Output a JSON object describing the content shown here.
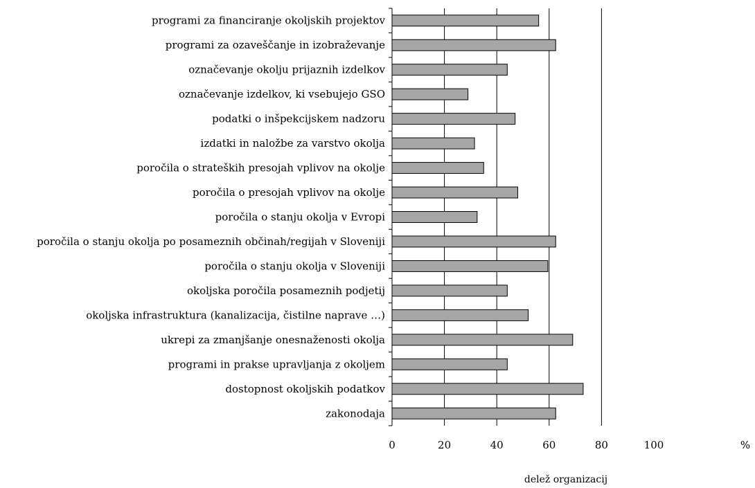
{
  "chart_data": {
    "type": "bar",
    "orientation": "horizontal",
    "categories": [
      "programi za financiranje okoljskih projektov",
      "programi za ozaveščanje in izobraževanje",
      "označevanje okolju prijaznih izdelkov",
      "označevanje izdelkov, ki vsebujejo GSO",
      "podatki o inšpekcijskem nadzoru",
      "izdatki in naložbe za varstvo okolja",
      "poročila o strateških presojah vplivov na okolje",
      "poročila o presojah vplivov na okolje",
      "poročila o stanju okolja v Evropi",
      "poročila o stanju okolja po posameznih občinah/regijah v Sloveniji",
      "poročila o stanju okolja v Sloveniji",
      "okoljska poročila posameznih podjetij",
      "okoljska infrastruktura (kanalizacija, čistilne naprave …)",
      "ukrepi za zmanjšanje onesnaženosti okolja",
      "programi in prakse upravljanja z okoljem",
      "dostopnost okoljskih podatkov",
      "zakonodaja"
    ],
    "values": [
      56,
      62.5,
      44,
      29,
      47,
      31.5,
      35,
      48,
      32.5,
      62.5,
      59.5,
      44,
      52,
      69,
      44,
      73,
      62.5
    ],
    "xlabel": "delež organizacij",
    "xunit": "%",
    "xlim": [
      0,
      100
    ],
    "xticks": [
      "0",
      "20",
      "40",
      "60",
      "80",
      "100"
    ],
    "grid": true,
    "bar_color": "#a6a6a6"
  }
}
